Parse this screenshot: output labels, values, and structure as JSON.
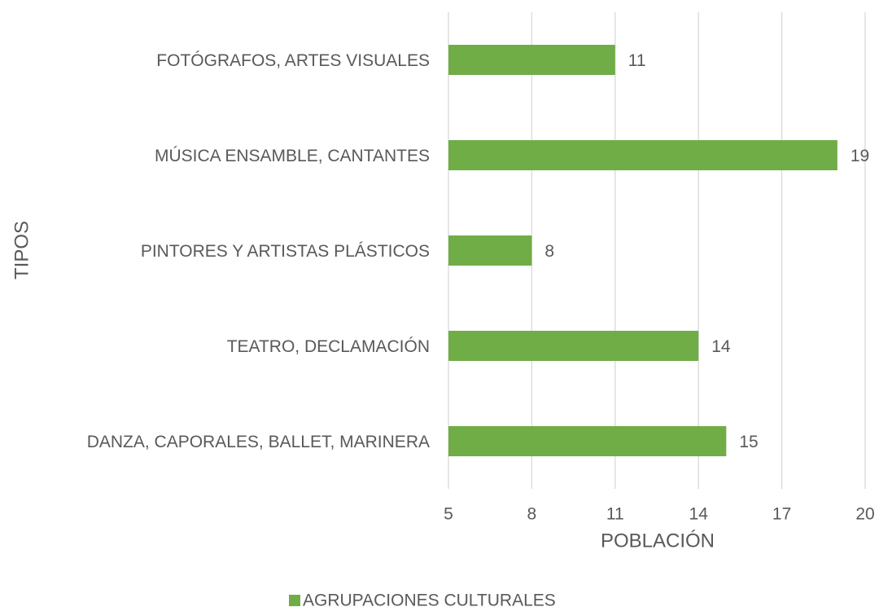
{
  "chart_data": {
    "type": "bar",
    "orientation": "horizontal",
    "categories": [
      "FOTÓGRAFOS, ARTES VISUALES",
      "MÚSICA ENSAMBLE, CANTANTES",
      "PINTORES Y ARTISTAS PLÁSTICOS",
      "TEATRO, DECLAMACIÓN",
      "DANZA, CAPORALES, BALLET, MARINERA"
    ],
    "series": [
      {
        "name": "AGRUPACIONES CULTURALES",
        "color": "#70ad47",
        "values": [
          11,
          19,
          8,
          14,
          15
        ]
      }
    ],
    "xlim": [
      5,
      20
    ],
    "xticks": [
      5,
      8,
      11,
      14,
      17,
      20
    ],
    "xlabel": "POBLACIÓN",
    "ylabel": "TIPOS",
    "grid": true,
    "legend": "bottom"
  }
}
